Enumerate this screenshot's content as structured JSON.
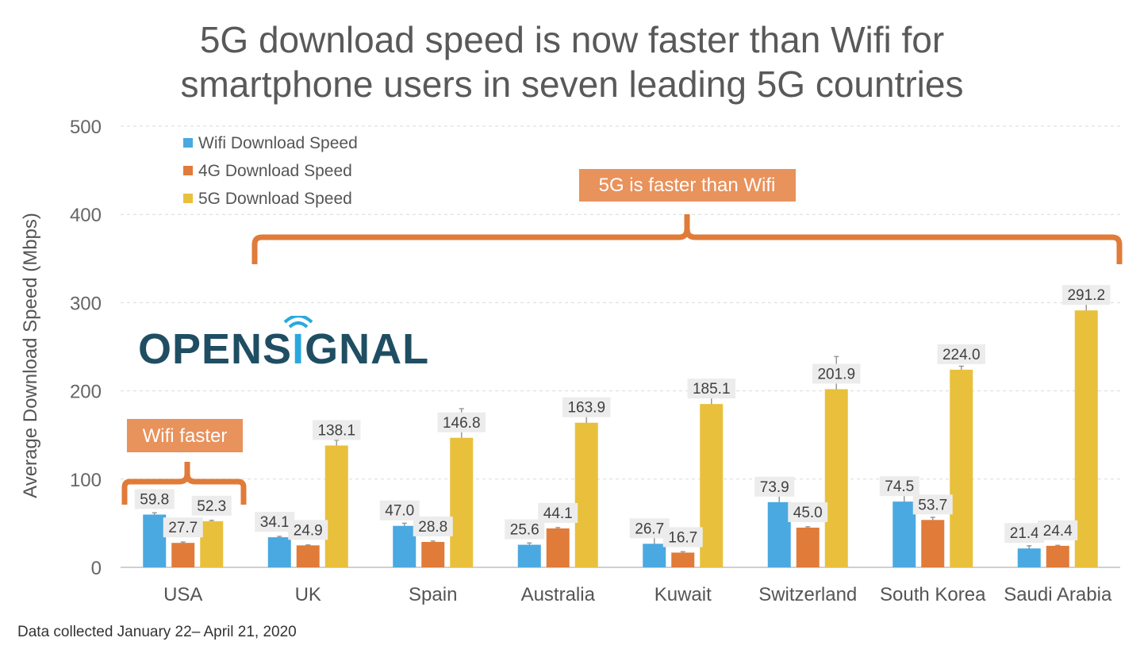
{
  "title": [
    "5G download speed is now faster than Wifi for",
    "smartphone users in seven leading 5G countries"
  ],
  "footnote": "Data collected January 22– April 21, 2020",
  "logo_text": "OPENSIGNAL",
  "annotations": {
    "wifi_faster": "Wifi faster",
    "fiveg_faster": "5G is faster than Wifi"
  },
  "colors": {
    "wifi": "#4aa9e0",
    "4g": "#e07b39",
    "5g": "#e9c03c",
    "annotation": "#e8925c",
    "logo": "#1f4e63",
    "logo_accent": "#29a8df"
  },
  "chart_data": {
    "type": "bar",
    "categories": [
      "USA",
      "UK",
      "Spain",
      "Australia",
      "Kuwait",
      "Switzerland",
      "South Korea",
      "Saudi Arabia"
    ],
    "series": [
      {
        "name": "Wifi Download Speed",
        "values": [
          59.8,
          34.1,
          47.0,
          25.6,
          26.7,
          73.9,
          74.5,
          21.4
        ]
      },
      {
        "name": "4G Download Speed",
        "values": [
          27.7,
          24.9,
          28.8,
          44.1,
          16.7,
          45.0,
          53.7,
          24.4
        ]
      },
      {
        "name": "5G Download Speed",
        "values": [
          52.3,
          138.1,
          146.8,
          163.9,
          185.1,
          201.9,
          224.0,
          291.2
        ]
      }
    ],
    "ylabel": "Average Download Speed (Mbps)",
    "ylim": [
      0,
      500
    ],
    "yticks": [
      0,
      100,
      200,
      300,
      400,
      500
    ],
    "grid": true,
    "legend": "top-left"
  }
}
